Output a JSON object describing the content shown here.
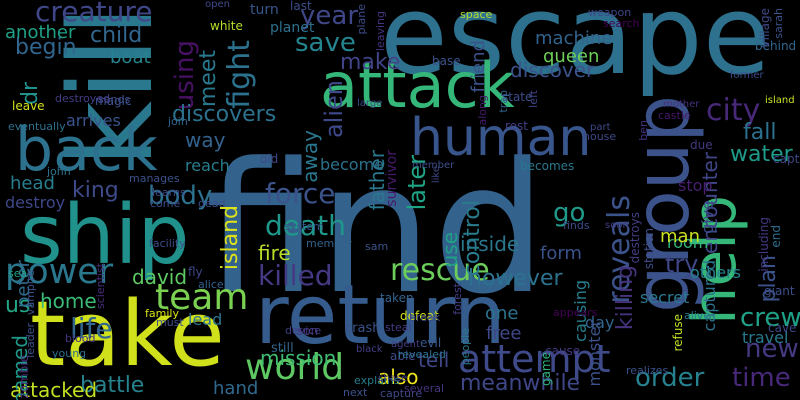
{
  "words": [
    {
      "t": "find",
      "c": "#33638d"
    },
    {
      "t": "escape",
      "c": "#2d718e"
    },
    {
      "t": "kill",
      "c": "#2a788e"
    },
    {
      "t": "take",
      "c": "#d0e11c"
    },
    {
      "t": "ship",
      "c": "#21918c"
    },
    {
      "t": "return",
      "c": "#365c8d"
    },
    {
      "t": "attack",
      "c": "#35b779"
    },
    {
      "t": "back",
      "c": "#2c728e"
    },
    {
      "t": "group",
      "c": "#3b528b"
    },
    {
      "t": "help",
      "c": "#35b779"
    },
    {
      "t": "human",
      "c": "#39568c"
    },
    {
      "t": "attempt",
      "c": "#3e4a89"
    },
    {
      "t": "world",
      "c": "#5ec962"
    },
    {
      "t": "team",
      "c": "#7ad151"
    },
    {
      "t": "power",
      "c": "#2a788e"
    },
    {
      "t": "rescue",
      "c": "#6ccd5a"
    },
    {
      "t": "city",
      "c": "#482878"
    },
    {
      "t": "fight",
      "c": "#2c728e"
    },
    {
      "t": "creature",
      "c": "#3f4788"
    },
    {
      "t": "new",
      "c": "#443a83"
    },
    {
      "t": "crew",
      "c": "#1fa187"
    },
    {
      "t": "order",
      "c": "#26828e"
    },
    {
      "t": "time",
      "c": "#482878"
    },
    {
      "t": "reveals",
      "c": "#3b528b"
    },
    {
      "t": "death",
      "c": "#1f988b"
    },
    {
      "t": "force",
      "c": "#3b528b"
    },
    {
      "t": "killed",
      "c": "#443983"
    },
    {
      "t": "alien",
      "c": "#3e4989"
    },
    {
      "t": "using",
      "c": "#471164"
    },
    {
      "t": "save",
      "c": "#25848e"
    },
    {
      "t": "year",
      "c": "#3f4788"
    },
    {
      "t": "body",
      "c": "#2c728e"
    },
    {
      "t": "later",
      "c": "#20a486"
    },
    {
      "t": "life",
      "c": "#31668e"
    },
    {
      "t": "fall",
      "c": "#2c728e"
    },
    {
      "t": "water",
      "c": "#1e9b8a"
    },
    {
      "t": "killing",
      "c": "#46337e"
    },
    {
      "t": "go",
      "c": "#1f9a8a"
    },
    {
      "t": "try",
      "c": "#3f4788"
    },
    {
      "t": "plan",
      "c": "#3b528b"
    },
    {
      "t": "control",
      "c": "#287c8e"
    },
    {
      "t": "meet",
      "c": "#29798e"
    },
    {
      "t": "discovers",
      "c": "#2c728e"
    },
    {
      "t": "king",
      "c": "#3e4a89"
    },
    {
      "t": "child",
      "c": "#31678e"
    },
    {
      "t": "begin",
      "c": "#31668e"
    },
    {
      "t": "dr",
      "c": "#21918c"
    },
    {
      "t": "make",
      "c": "#414487"
    },
    {
      "t": "discover",
      "c": "#3b528b"
    },
    {
      "t": "encounter",
      "c": "#404688"
    },
    {
      "t": "however",
      "c": "#2c728e"
    },
    {
      "t": "meanwhile",
      "c": "#3f4788"
    },
    {
      "t": "battle",
      "c": "#26828e"
    },
    {
      "t": "attacked",
      "c": "#c2df23"
    },
    {
      "t": "also",
      "c": "#f1e51d"
    },
    {
      "t": "tell",
      "c": "#3f4788"
    },
    {
      "t": "named",
      "c": "#1f9a8a"
    },
    {
      "t": "us",
      "c": "#22a785"
    },
    {
      "t": "home",
      "c": "#3aba76"
    },
    {
      "t": "father",
      "c": "#2a778e"
    },
    {
      "t": "away",
      "c": "#2a778e"
    },
    {
      "t": "way",
      "c": "#33638d"
    },
    {
      "t": "fire",
      "c": "#b8de29"
    },
    {
      "t": "island",
      "c": "#dde318"
    },
    {
      "t": "david",
      "c": "#5ec962"
    },
    {
      "t": "use",
      "c": "#1fa287"
    },
    {
      "t": "inside",
      "c": "#2a778e"
    },
    {
      "t": "form",
      "c": "#3b528b"
    },
    {
      "t": "mission",
      "c": "#3fbc73"
    },
    {
      "t": "hand",
      "c": "#30698e"
    },
    {
      "t": "one",
      "c": "#2c728e"
    },
    {
      "t": "free",
      "c": "#3f4788"
    },
    {
      "t": "friend",
      "c": "#3b528b"
    },
    {
      "t": "machine",
      "c": "#33638d"
    },
    {
      "t": "queen",
      "c": "#6ece58"
    },
    {
      "t": "another",
      "c": "#1fa187"
    },
    {
      "t": "head",
      "c": "#277f8e"
    },
    {
      "t": "destroy",
      "c": "#3f4788"
    },
    {
      "t": "peter",
      "c": "#2e6d8e"
    },
    {
      "t": "boat",
      "c": "#26828e"
    },
    {
      "t": "arrives",
      "c": "#3a548c"
    },
    {
      "t": "secret",
      "c": "#2a788e"
    },
    {
      "t": "stop",
      "c": "#481f70"
    },
    {
      "t": "give",
      "c": "#3e4989"
    },
    {
      "t": "room",
      "c": "#35b779"
    },
    {
      "t": "others",
      "c": "#26828e"
    },
    {
      "t": "man",
      "c": "#c8e020"
    },
    {
      "t": "captured",
      "c": "#2c728e"
    },
    {
      "t": "travel",
      "c": "#29798e"
    },
    {
      "t": "day",
      "c": "#31668e"
    },
    {
      "t": "monster",
      "c": "#3b528b"
    },
    {
      "t": "causing",
      "c": "#277f8e"
    },
    {
      "t": "become",
      "c": "#2c728e"
    },
    {
      "t": "survivor",
      "c": "#48186a"
    },
    {
      "t": "reach",
      "c": "#287d8e"
    },
    {
      "t": "lead",
      "c": "#2c738e"
    },
    {
      "t": "turn",
      "c": "#39568c"
    },
    {
      "t": "planet",
      "c": "#2d708e"
    },
    {
      "t": "magic",
      "c": "#3c508b"
    },
    {
      "t": "last",
      "c": "#3d4e8a"
    },
    {
      "t": "white",
      "c": "#b5de2b"
    },
    {
      "t": "open",
      "c": "#3e4989"
    },
    {
      "t": "son",
      "c": "#46327e"
    },
    {
      "t": "device",
      "c": "#424086"
    },
    {
      "t": "crash",
      "c": "#3b528b"
    },
    {
      "t": "still",
      "c": "#33638d"
    },
    {
      "t": "evil",
      "c": "#38588c"
    },
    {
      "t": "rest",
      "c": "#433e85"
    },
    {
      "t": "cause",
      "c": "#443983"
    },
    {
      "t": "able",
      "c": "#3e4989"
    },
    {
      "t": "taken",
      "c": "#33638d"
    },
    {
      "t": "agent",
      "c": "#433d84"
    },
    {
      "t": "revealed",
      "c": "#2c728e"
    },
    {
      "t": "member",
      "c": "#3d4d8a"
    },
    {
      "t": "becomes",
      "c": "#2a788e"
    },
    {
      "t": "dead",
      "c": "#3d4e8a"
    },
    {
      "t": "memory",
      "c": "#33638d"
    },
    {
      "t": "steal",
      "c": "#433d84"
    },
    {
      "t": "sam",
      "c": "#3b528b"
    },
    {
      "t": "system",
      "c": "#38588c"
    },
    {
      "t": "old",
      "c": "#3f4788"
    },
    {
      "t": "fly",
      "c": "#3f4788"
    },
    {
      "t": "alice",
      "c": "#355f8d"
    },
    {
      "t": "family",
      "c": "#d8e219"
    },
    {
      "t": "must",
      "c": "#3d4e8a"
    },
    {
      "t": "sea",
      "c": "#20a386"
    },
    {
      "t": "john",
      "c": "#2c728e"
    },
    {
      "t": "learns",
      "c": "#3e4989"
    },
    {
      "t": "manages",
      "c": "#3b528b"
    },
    {
      "t": "join",
      "c": "#33638d"
    },
    {
      "t": "sends",
      "c": "#3e4989"
    },
    {
      "t": "leave",
      "c": "#d5e21a"
    },
    {
      "t": "destroyed",
      "c": "#433e85"
    },
    {
      "t": "eventually",
      "c": "#2c728e"
    },
    {
      "t": "defeat",
      "c": "#d2e21b"
    },
    {
      "t": "break",
      "c": "#3e4989"
    },
    {
      "t": "capture",
      "c": "#3e4989"
    },
    {
      "t": "next",
      "c": "#3b528b"
    },
    {
      "t": "explains",
      "c": "#287d8e"
    },
    {
      "t": "chase",
      "c": "#433e85"
    },
    {
      "t": "black",
      "c": "#433e85"
    },
    {
      "t": "several",
      "c": "#46337e"
    },
    {
      "t": "vampire",
      "c": "#3b528b"
    },
    {
      "t": "scientist",
      "c": "#472d7b"
    },
    {
      "t": "blood",
      "c": "#46327e"
    },
    {
      "t": "young",
      "c": "#2c728e"
    },
    {
      "t": "leader",
      "c": "#3b528b"
    },
    {
      "t": "zombie",
      "c": "#472d7b"
    },
    {
      "t": "game",
      "c": "#2db27d"
    },
    {
      "t": "forest",
      "c": "#424086"
    },
    {
      "t": "people",
      "c": "#2a788e"
    },
    {
      "t": "realizes",
      "c": "#3b528b"
    },
    {
      "t": "destroys",
      "c": "#433e85"
    },
    {
      "t": "station",
      "c": "#3d4e8a"
    },
    {
      "t": "alive",
      "c": "#2a788e"
    },
    {
      "t": "refuse",
      "c": "#c2df23"
    },
    {
      "t": "giant",
      "c": "#3d4e8a"
    },
    {
      "t": "cave",
      "c": "#3e4989"
    },
    {
      "t": "behind",
      "c": "#31668e"
    },
    {
      "t": "village",
      "c": "#3e4989"
    },
    {
      "t": "sarah",
      "c": "#3b528b"
    },
    {
      "t": "weapon",
      "c": "#3f4788"
    },
    {
      "t": "search",
      "c": "#440154"
    },
    {
      "t": "space",
      "c": "#b5de2b"
    },
    {
      "t": "base",
      "c": "#3b528b"
    },
    {
      "t": "along",
      "c": "#481c6e"
    },
    {
      "t": "trap",
      "c": "#33638d"
    },
    {
      "t": "state",
      "c": "#3d4e8a"
    },
    {
      "t": "part",
      "c": "#3e4989"
    },
    {
      "t": "house",
      "c": "#3e4989"
    },
    {
      "t": "left",
      "c": "#414487"
    },
    {
      "t": "ben",
      "c": "#46327e"
    },
    {
      "t": "castle",
      "c": "#481769"
    },
    {
      "t": "mother",
      "c": "#46327e"
    },
    {
      "t": "due",
      "c": "#453882"
    },
    {
      "t": "island",
      "c": "#c8e020"
    },
    {
      "t": "captain",
      "c": "#3e4989"
    },
    {
      "t": "including",
      "c": "#453882"
    },
    {
      "t": "end",
      "c": "#2e6e8e"
    },
    {
      "t": "finds",
      "c": "#3d4e8a"
    },
    {
      "t": "soon",
      "c": "#433e85"
    },
    {
      "t": "appears",
      "c": "#440154"
    },
    {
      "t": "leaving",
      "c": "#46337e"
    },
    {
      "t": "plane",
      "c": "#3d4e8a"
    },
    {
      "t": "large",
      "c": "#3d4e8a"
    },
    {
      "t": "like",
      "c": "#3e4989"
    },
    {
      "t": "come",
      "c": "#3d4e8a"
    },
    {
      "t": "facility",
      "c": "#3d4e8a"
    },
    {
      "t": "former",
      "c": "#3d4e8a"
    }
  ]
}
